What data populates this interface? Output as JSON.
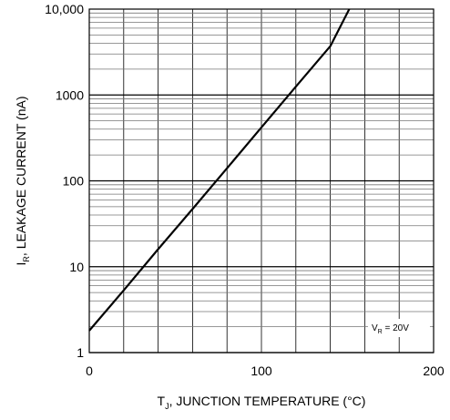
{
  "chart_data": {
    "type": "line",
    "title": "",
    "xlabel": {
      "main": "T",
      "sub": "J",
      "rest": ", JUNCTION TEMPERATURE (°C)"
    },
    "ylabel": {
      "main": "I",
      "sub": "R",
      "rest": ", LEAKAGE CURRENT (nA)"
    },
    "x_ticks": [
      {
        "value": 0,
        "label": "0"
      },
      {
        "value": 100,
        "label": "100"
      },
      {
        "value": 200,
        "label": "200"
      }
    ],
    "y_ticks": [
      {
        "value": 1,
        "label": "1"
      },
      {
        "value": 10,
        "label": "10"
      },
      {
        "value": 100,
        "label": "100"
      },
      {
        "value": 1000,
        "label": "1000"
      },
      {
        "value": 10000,
        "label": "10,000"
      }
    ],
    "xlim": [
      0,
      200
    ],
    "ylim": [
      1,
      10000
    ],
    "y_scale": "log",
    "grid": true,
    "x_grid_step": 20,
    "annotation": {
      "main": "V",
      "sub": "R",
      "rest": " = 20V"
    },
    "series": [
      {
        "x": [
          0,
          20,
          40,
          60,
          80,
          100,
          120,
          140,
          151
        ],
        "y": [
          1.8,
          5.3,
          16,
          47,
          140,
          420,
          1250,
          3700,
          10000
        ]
      }
    ]
  }
}
